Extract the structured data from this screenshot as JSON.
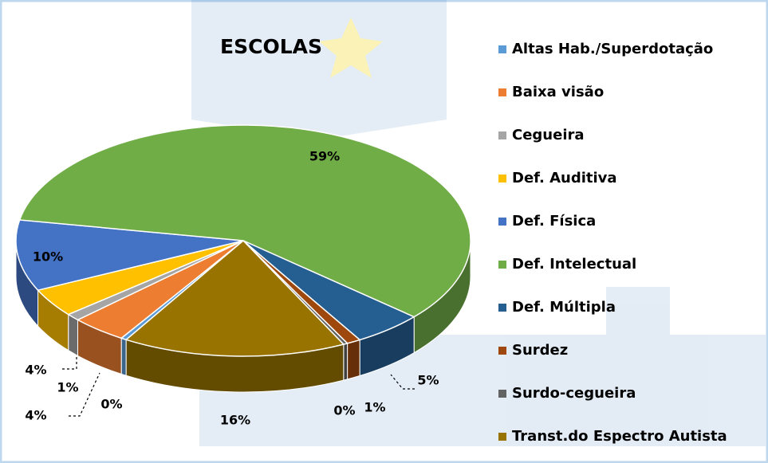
{
  "chart_data": {
    "type": "pie3d",
    "title": "ESCOLAS",
    "categories": [
      "Altas Hab./Superdotação",
      "Baixa visão",
      "Cegueira",
      "Def. Auditiva",
      "Def. Física",
      "Def. Intelectual",
      "Def. Múltipla",
      "Surdez",
      "Surdo-cegueira",
      "Transt.do Espectro Autista"
    ],
    "values": [
      0.4,
      4,
      1,
      4,
      10,
      59,
      5,
      1,
      0.3,
      16
    ],
    "value_labels": [
      "0%",
      "4%",
      "1%",
      "4%",
      "10%",
      "59%",
      "5%",
      "1%",
      "0%",
      "16%"
    ],
    "colors": [
      "#5b9bd5",
      "#ed7d31",
      "#a5a5a5",
      "#ffc000",
      "#4472c4",
      "#70ad47",
      "#255e91",
      "#9e480e",
      "#636363",
      "#997300"
    ],
    "legend": "right"
  }
}
